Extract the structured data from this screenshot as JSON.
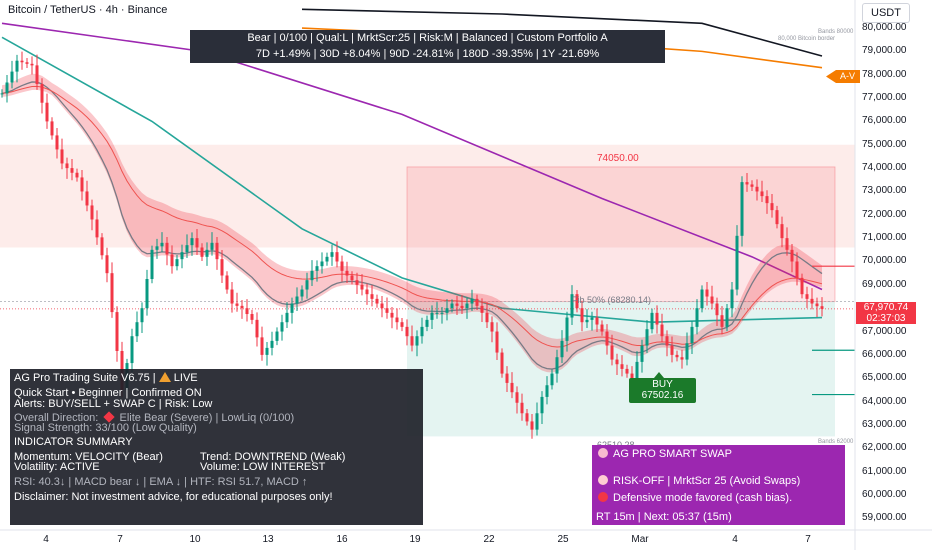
{
  "header": {
    "title": "Bitcoin / TetherUS · 4h · Binance",
    "currency_button": "USDT"
  },
  "performance": {
    "line1": "Bear | 0/100 | Qual:L | MrktScr:25 | Risk:M | Balanced | Custom Portfolio A",
    "line2": "7D +1.49% | 30D +8.04% | 90D -24.81% | 180D -39.35% | 1Y -21.69%"
  },
  "dashboard": {
    "title": "AG Pro Trading Suite V6.75 |",
    "title_status": "LIVE",
    "quick_start": "Quick Start • Beginner | Confirmed ON",
    "alerts": "Alerts: BUY/SELL + SWAP C | Risk: Low",
    "overall_direction_label": "Overall Direction:",
    "overall_direction_value": "Elite Bear (Severe) | LowLiq (0/100)",
    "signal_strength": "Signal Strength: 33/100 (Low Quality)",
    "summary_heading": "INDICATOR SUMMARY",
    "momentum": "Momentum: VELOCITY (Bear)",
    "trend": "Trend: DOWNTREND (Weak)",
    "volatility": "Volatility: ACTIVE",
    "volume": "Volume: LOW INTEREST",
    "indicators": "RSI: 40.3↓ | MACD bear ↓ | EMA ↓ | HTF: RSI 51.7, MACD ↑",
    "disclaimer": "Disclaimer: Not investment advice, for educational purposes only!"
  },
  "swap_panel": {
    "title": "AG PRO SMART SWAP",
    "risk_line": "RISK-OFF | MrktScr 25 (Avoid Swaps)",
    "defensive_line": "Defensive mode favored (cash bias).",
    "timer_line": "RT 15m | Next: 05:37 (15m)"
  },
  "signals": {
    "buy_label": "BUY",
    "buy_price": "67502.16"
  },
  "price_labels": {
    "current_price": "67,970.74",
    "countdown": "02:37:03",
    "zone_top": "74050.00",
    "zone_bottom": "62510.28",
    "fib_mid": "Fib 50% (68280.14)",
    "av_tag": "A-V",
    "bands_tiny_1": "Bands 80000",
    "bands_tiny_2": "80,000 Bitcoin border",
    "bands_tiny_3": "Bands 62000"
  },
  "colors": {
    "bear": "#f23645",
    "bull": "#089981",
    "swap_bg": "#9c27b0",
    "panel_bg": "#1e2129",
    "ema_purple": "#9c27b0",
    "ema_teal": "#26a69a",
    "ema_orange": "#f57c00",
    "ema_black": "#131722"
  },
  "chart_data": {
    "type": "candlestick",
    "title": "Bitcoin / TetherUS · 4h · Binance",
    "y_ticks": [
      "80,000.00",
      "79,000.00",
      "78,000.00",
      "77,000.00",
      "76,000.00",
      "75,000.00",
      "74,000.00",
      "73,000.00",
      "72,000.00",
      "71,000.00",
      "70,000.00",
      "69,000.00",
      "67,000.00",
      "66,000.00",
      "65,000.00",
      "64,000.00",
      "63,000.00",
      "62,000.00",
      "61,000.00",
      "60,000.00",
      "59,000.00"
    ],
    "ylim": [
      58500,
      81200
    ],
    "x_ticks": [
      "4",
      "7",
      "10",
      "13",
      "16",
      "19",
      "22",
      "25",
      "Mar",
      "4",
      "7"
    ],
    "zones": {
      "sell_zone": [
        68280,
        74050
      ],
      "buy_zone": [
        62510,
        68280
      ]
    },
    "current_price": 67970.74,
    "series": [
      {
        "name": "close_path",
        "points": [
          [
            0,
            77200
          ],
          [
            3,
            78600
          ],
          [
            6,
            78400
          ],
          [
            9,
            76000
          ],
          [
            12,
            74200
          ],
          [
            15,
            73600
          ],
          [
            18,
            71800
          ],
          [
            21,
            69500
          ],
          [
            24,
            64500
          ],
          [
            26,
            66800
          ],
          [
            28,
            68000
          ],
          [
            30,
            70500
          ],
          [
            32,
            70800
          ],
          [
            34,
            69800
          ],
          [
            36,
            70400
          ],
          [
            38,
            71000
          ],
          [
            40,
            70200
          ],
          [
            42,
            70800
          ],
          [
            44,
            69400
          ],
          [
            46,
            68200
          ],
          [
            48,
            68000
          ],
          [
            50,
            67500
          ],
          [
            52,
            66000
          ],
          [
            54,
            66600
          ],
          [
            56,
            67400
          ],
          [
            58,
            68200
          ],
          [
            60,
            68800
          ],
          [
            62,
            69600
          ],
          [
            64,
            70000
          ],
          [
            66,
            70400
          ],
          [
            68,
            69600
          ],
          [
            70,
            69200
          ],
          [
            72,
            68800
          ],
          [
            74,
            68400
          ],
          [
            76,
            68000
          ],
          [
            78,
            67600
          ],
          [
            80,
            67200
          ],
          [
            82,
            66400
          ],
          [
            84,
            67200
          ],
          [
            86,
            67800
          ],
          [
            88,
            67800
          ],
          [
            90,
            68200
          ],
          [
            92,
            68000
          ],
          [
            94,
            68400
          ],
          [
            96,
            67800
          ],
          [
            98,
            67000
          ],
          [
            100,
            65200
          ],
          [
            102,
            64400
          ],
          [
            104,
            63500
          ],
          [
            106,
            62800
          ],
          [
            108,
            64200
          ],
          [
            110,
            65200
          ],
          [
            112,
            66600
          ],
          [
            114,
            68600
          ],
          [
            116,
            67400
          ],
          [
            118,
            67600
          ],
          [
            120,
            67000
          ],
          [
            122,
            65800
          ],
          [
            124,
            65400
          ],
          [
            126,
            65000
          ],
          [
            128,
            66400
          ],
          [
            130,
            67800
          ],
          [
            132,
            66800
          ],
          [
            134,
            66000
          ],
          [
            136,
            65800
          ],
          [
            138,
            67200
          ],
          [
            140,
            68800
          ],
          [
            142,
            68200
          ],
          [
            144,
            67200
          ],
          [
            146,
            68800
          ],
          [
            148,
            73400
          ],
          [
            150,
            73200
          ],
          [
            152,
            72800
          ],
          [
            154,
            72200
          ],
          [
            156,
            71000
          ],
          [
            158,
            70000
          ],
          [
            160,
            68600
          ],
          [
            162,
            68200
          ],
          [
            164,
            67970
          ]
        ]
      },
      {
        "name": "ema_purple",
        "points": [
          [
            0,
            80200
          ],
          [
            40,
            79000
          ],
          [
            80,
            76300
          ],
          [
            120,
            72700
          ],
          [
            150,
            70200
          ],
          [
            164,
            68800
          ]
        ]
      },
      {
        "name": "ema_teal",
        "points": [
          [
            0,
            79600
          ],
          [
            30,
            76000
          ],
          [
            60,
            71400
          ],
          [
            80,
            69300
          ],
          [
            100,
            68000
          ],
          [
            130,
            67400
          ],
          [
            164,
            67600
          ]
        ]
      },
      {
        "name": "ema_black",
        "points": [
          [
            60,
            80800
          ],
          [
            100,
            80600
          ],
          [
            140,
            80200
          ],
          [
            164,
            78800
          ]
        ]
      },
      {
        "name": "ema_orange",
        "points": [
          [
            60,
            80000
          ],
          [
            100,
            79600
          ],
          [
            140,
            79000
          ],
          [
            164,
            78300
          ]
        ]
      }
    ]
  }
}
